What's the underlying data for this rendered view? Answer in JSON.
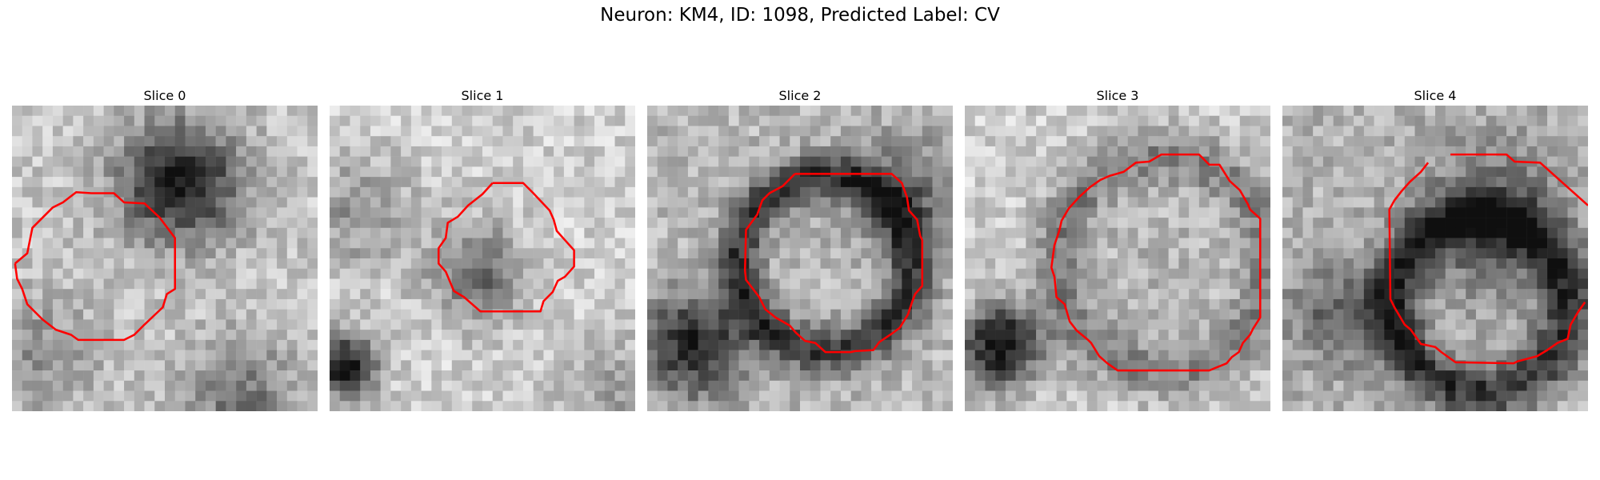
{
  "figure": {
    "title": "Neuron: KM4, ID: 1098, Predicted Label: CV"
  },
  "panels": [
    {
      "title": "Slice 0"
    },
    {
      "title": "Slice 1"
    },
    {
      "title": "Slice 2"
    },
    {
      "title": "Slice 3"
    },
    {
      "title": "Slice 4"
    }
  ],
  "colors": {
    "contour": "#ff0000",
    "colormap": "grayscale"
  }
}
